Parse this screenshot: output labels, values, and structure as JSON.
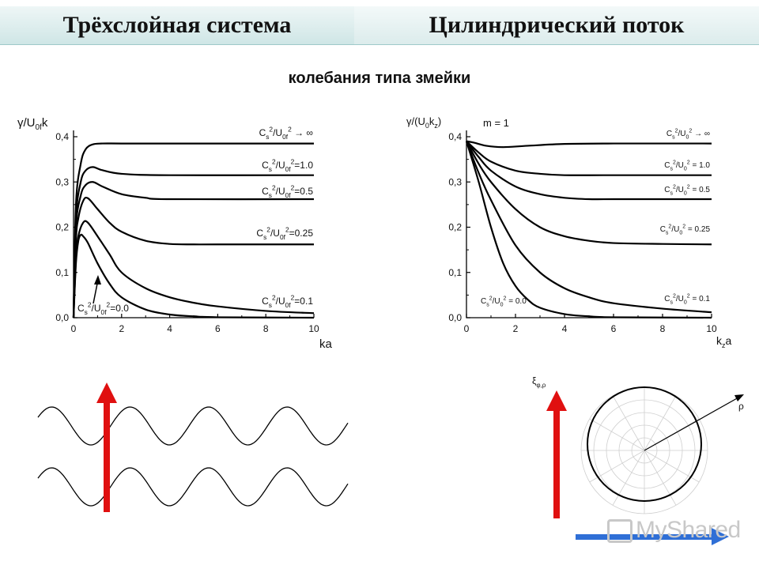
{
  "header": {
    "tab_left": "Трёхслойная система",
    "tab_right": "Цилиндрический поток"
  },
  "subtitle": "колебания типа змейки",
  "chart_data": [
    {
      "type": "line",
      "ylabel": "γ/U0fk",
      "xlabel": "ka",
      "xlim": [
        0,
        10
      ],
      "ylim": [
        0,
        0.4
      ],
      "x_ticks": [
        "0",
        "2",
        "4",
        "6",
        "8",
        "10"
      ],
      "y_ticks": [
        "0,0",
        "0,1",
        "0,2",
        "0,3",
        "0,4"
      ],
      "series": [
        {
          "name": "C_s^2/U_0f^2 → ∞",
          "x": [
            0,
            0.1,
            0.3,
            0.5,
            0.8,
            1.2,
            2,
            4,
            10
          ],
          "y": [
            0,
            0.25,
            0.34,
            0.372,
            0.383,
            0.385,
            0.385,
            0.385,
            0.385
          ]
        },
        {
          "name": "C_s^2/U_0f^2=1.0",
          "x": [
            0,
            0.1,
            0.3,
            0.5,
            0.8,
            1.2,
            2,
            4,
            10
          ],
          "y": [
            0,
            0.22,
            0.3,
            0.325,
            0.333,
            0.326,
            0.318,
            0.315,
            0.315
          ]
        },
        {
          "name": "C_s^2/U_0f^2=0.5",
          "x": [
            0,
            0.1,
            0.3,
            0.5,
            0.8,
            1.2,
            2,
            3,
            4,
            10
          ],
          "y": [
            0,
            0.2,
            0.27,
            0.293,
            0.3,
            0.29,
            0.273,
            0.265,
            0.262,
            0.262
          ]
        },
        {
          "name": "C_s^2/U_0f^2=0.25",
          "x": [
            0,
            0.1,
            0.2,
            0.4,
            0.6,
            1,
            1.5,
            2,
            3,
            4,
            5,
            6,
            10
          ],
          "y": [
            0,
            0.17,
            0.22,
            0.258,
            0.264,
            0.24,
            0.21,
            0.19,
            0.17,
            0.163,
            0.162,
            0.162,
            0.162
          ]
        },
        {
          "name": "C_s^2/U_0f^2=0.1",
          "x": [
            0,
            0.1,
            0.2,
            0.4,
            0.6,
            1,
            1.5,
            2,
            3,
            4,
            5,
            6,
            8,
            10
          ],
          "y": [
            0,
            0.13,
            0.18,
            0.21,
            0.21,
            0.18,
            0.14,
            0.1,
            0.065,
            0.045,
            0.033,
            0.025,
            0.015,
            0.01
          ]
        },
        {
          "name": "C_s^2/U_0f^2=0.0",
          "x": [
            0,
            0.1,
            0.2,
            0.3,
            0.4,
            0.6,
            1,
            1.5,
            2,
            3,
            4,
            5,
            6,
            10
          ],
          "y": [
            0,
            0.12,
            0.17,
            0.183,
            0.18,
            0.165,
            0.12,
            0.075,
            0.045,
            0.018,
            0.007,
            0.003,
            0.001,
            0
          ]
        }
      ],
      "annotations": [
        "C_s^2/U_0f^2 → ∞",
        "C_s^2/U_0f^2=1.0",
        "C_s^2/U_0f^2=0.5",
        "C_s^2/U_0f^2=0.25",
        "C_s^2/U_0f^2=0.1",
        "C_s^2/U_0f^2=0.0"
      ]
    },
    {
      "type": "line",
      "ylabel": "γ/(U0kz)",
      "xlabel": "kza",
      "xlim": [
        0,
        10
      ],
      "ylim": [
        0,
        0.4
      ],
      "annotation_main": "m = 1",
      "x_ticks": [
        "0",
        "2",
        "4",
        "6",
        "8",
        "10"
      ],
      "y_ticks": [
        "0,0",
        "0,1",
        "0,2",
        "0,3",
        "0,4"
      ],
      "series": [
        {
          "name": "C_s^2/U_0^2 → ∞",
          "x": [
            0,
            0.3,
            0.8,
            1.5,
            2.5,
            4,
            6,
            10
          ],
          "y": [
            0.39,
            0.387,
            0.38,
            0.377,
            0.38,
            0.384,
            0.385,
            0.385
          ]
        },
        {
          "name": "C_s^2/U_0^2 = 1.0",
          "x": [
            0,
            0.5,
            1,
            2,
            3,
            4,
            6,
            10
          ],
          "y": [
            0.39,
            0.365,
            0.345,
            0.325,
            0.318,
            0.315,
            0.315,
            0.315
          ]
        },
        {
          "name": "C_s^2/U_0^2 = 0.5",
          "x": [
            0,
            0.5,
            1,
            2,
            3,
            4,
            5,
            6,
            10
          ],
          "y": [
            0.39,
            0.355,
            0.325,
            0.29,
            0.273,
            0.265,
            0.262,
            0.262,
            0.262
          ]
        },
        {
          "name": "C_s^2/U_0^2 = 0.25",
          "x": [
            0,
            0.5,
            1,
            2,
            3,
            4,
            5,
            6,
            8,
            10
          ],
          "y": [
            0.39,
            0.34,
            0.3,
            0.24,
            0.2,
            0.18,
            0.17,
            0.165,
            0.163,
            0.162
          ]
        },
        {
          "name": "C_s^2/U_0^2 = 0.1",
          "x": [
            0,
            0.5,
            1,
            2,
            3,
            4,
            5,
            6,
            8,
            10
          ],
          "y": [
            0.39,
            0.32,
            0.26,
            0.16,
            0.1,
            0.065,
            0.045,
            0.032,
            0.02,
            0.012
          ]
        },
        {
          "name": "C_s^2/U_0^2 = 0.0",
          "x": [
            0,
            0.5,
            1,
            1.5,
            2,
            2.5,
            3,
            4,
            5,
            6,
            10
          ],
          "y": [
            0.39,
            0.3,
            0.2,
            0.12,
            0.07,
            0.04,
            0.022,
            0.008,
            0.003,
            0.001,
            0
          ]
        }
      ],
      "annotations": [
        "C_s^2/U_0^2 → ∞",
        "C_s^2/U_0^2 = 1.0",
        "C_s^2/U_0^2 = 0.5",
        "C_s^2/U_0^2 = 0.25",
        "C_s^2/U_0^2 = 0.1",
        "C_s^2/U_0^2 = 0.0"
      ]
    }
  ],
  "polar_diagram": {
    "ylabel": "ξφ,ρ",
    "radial_label": "ρ"
  },
  "watermark": "MyShared"
}
